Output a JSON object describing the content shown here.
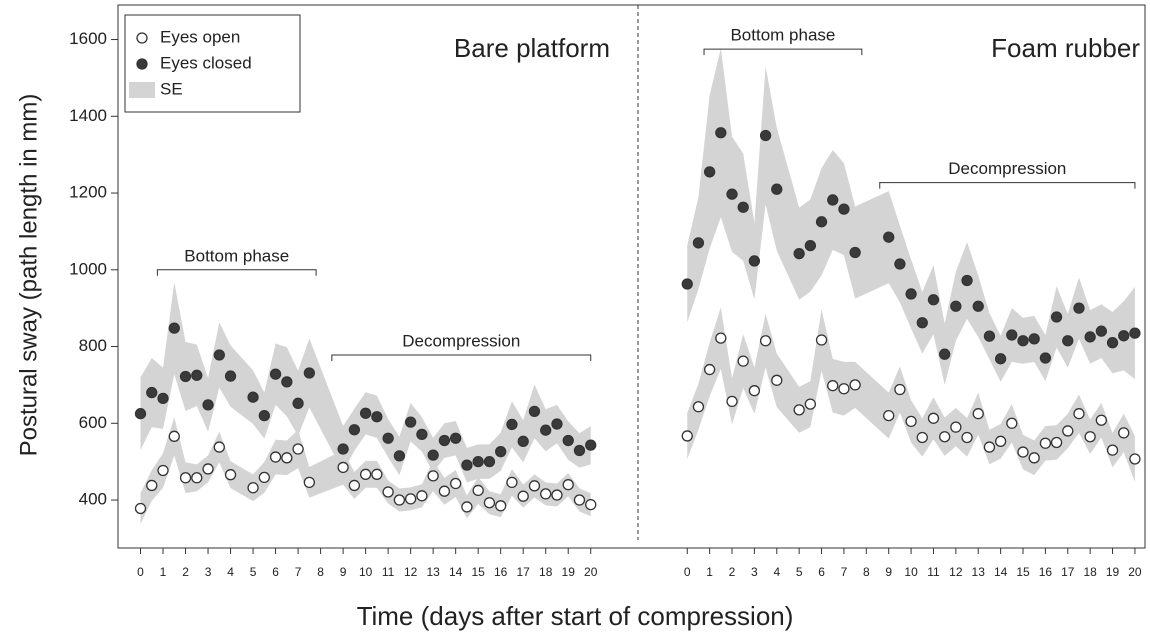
{
  "chart_data": [
    {
      "type": "scatter",
      "title": "Bare platform",
      "ylabel": "Postural sway (path length in mm)",
      "xlabel": "Time (days after start of compression)",
      "band_label": "SE",
      "band_color": "#d4d4d4",
      "legend": true,
      "xlim": [
        -1,
        22.1
      ],
      "ylim": [
        275,
        1690
      ],
      "xticks": [
        0,
        1,
        2,
        3,
        4,
        5,
        6,
        7,
        8,
        9,
        10,
        11,
        12,
        13,
        14,
        15,
        16,
        17,
        18,
        19,
        20
      ],
      "yticks": [
        400,
        600,
        800,
        1000,
        1200,
        1400,
        1600
      ],
      "x": [
        0,
        0.5,
        1,
        1.5,
        2,
        2.5,
        3,
        3.5,
        4,
        5,
        5.5,
        6,
        6.5,
        7,
        7.5,
        9,
        9.5,
        10,
        10.5,
        11,
        11.5,
        12,
        12.5,
        13,
        13.5,
        14,
        14.5,
        15,
        15.5,
        16,
        16.5,
        17,
        17.5,
        18,
        18.5,
        19,
        19.5,
        20
      ],
      "series": [
        {
          "name": "Eyes open",
          "color": "#ffffff",
          "values": [
            378,
            438,
            477,
            566,
            458,
            458,
            481,
            538,
            466,
            432,
            459,
            512,
            510,
            533,
            446,
            485,
            438,
            467,
            467,
            421,
            400,
            403,
            411,
            463,
            423,
            443,
            382,
            425,
            393,
            385,
            446,
            410,
            437,
            416,
            413,
            440,
            400,
            388
          ],
          "se": [
            40,
            40,
            45,
            50,
            40,
            35,
            35,
            40,
            35,
            35,
            40,
            45,
            45,
            50,
            40,
            45,
            35,
            35,
            35,
            30,
            30,
            30,
            30,
            40,
            35,
            35,
            30,
            35,
            30,
            30,
            35,
            30,
            30,
            30,
            30,
            30,
            30,
            30
          ]
        },
        {
          "name": "Eyes closed",
          "color": "#3a3a3a",
          "values": [
            625,
            680,
            665,
            848,
            722,
            725,
            648,
            778,
            723,
            668,
            620,
            728,
            708,
            652,
            731,
            533,
            583,
            626,
            617,
            561,
            515,
            603,
            571,
            517,
            555,
            561,
            491,
            500,
            500,
            526,
            597,
            553,
            631,
            582,
            598,
            555,
            529,
            543
          ],
          "se": [
            95,
            90,
            80,
            120,
            90,
            80,
            70,
            85,
            80,
            70,
            60,
            80,
            90,
            85,
            90,
            60,
            55,
            55,
            55,
            50,
            50,
            50,
            45,
            45,
            45,
            45,
            45,
            45,
            45,
            50,
            60,
            55,
            70,
            55,
            50,
            50,
            45,
            50
          ]
        }
      ],
      "annotations": [
        {
          "text": "Bottom phase",
          "span": [
            0.75,
            7.8
          ],
          "level": 1000
        },
        {
          "text": "Decompression",
          "span": [
            8.5,
            20
          ],
          "level": 778
        }
      ]
    },
    {
      "type": "scatter",
      "title": "Foam rubber",
      "xlim": [
        -2.2,
        20.45
      ],
      "ylim": [
        275,
        1690
      ],
      "xticks": [
        0,
        1,
        2,
        3,
        4,
        5,
        6,
        7,
        8,
        9,
        10,
        11,
        12,
        13,
        14,
        15,
        16,
        17,
        18,
        19,
        20
      ],
      "x": [
        0,
        0.5,
        1,
        1.5,
        2,
        2.5,
        3,
        3.5,
        4,
        5,
        5.5,
        6,
        6.5,
        7,
        7.5,
        9,
        9.5,
        10,
        10.5,
        11,
        11.5,
        12,
        12.5,
        13,
        13.5,
        14,
        14.5,
        15,
        15.5,
        16,
        16.5,
        17,
        17.5,
        18,
        18.5,
        19,
        19.5,
        20
      ],
      "series": [
        {
          "color": "#ffffff",
          "values": [
            567,
            643,
            740,
            822,
            657,
            762,
            685,
            815,
            712,
            635,
            650,
            817,
            698,
            690,
            700,
            620,
            688,
            605,
            563,
            613,
            565,
            590,
            563,
            625,
            538,
            553,
            600,
            525,
            510,
            548,
            550,
            580,
            625,
            565,
            608,
            530,
            575,
            507
          ],
          "se": [
            60,
            60,
            70,
            80,
            60,
            70,
            60,
            70,
            70,
            60,
            60,
            80,
            70,
            70,
            60,
            60,
            60,
            55,
            50,
            55,
            50,
            50,
            50,
            55,
            45,
            45,
            50,
            45,
            45,
            45,
            45,
            45,
            50,
            45,
            45,
            45,
            50,
            60
          ]
        },
        {
          "color": "#3a3a3a",
          "values": [
            963,
            1070,
            1255,
            1357,
            1197,
            1163,
            1023,
            1350,
            1210,
            1042,
            1063,
            1125,
            1182,
            1158,
            1045,
            1085,
            1015,
            937,
            862,
            922,
            780,
            905,
            972,
            905,
            827,
            768,
            830,
            815,
            820,
            770,
            877,
            815,
            900,
            825,
            840,
            810,
            828,
            835
          ],
          "se": [
            100,
            120,
            200,
            220,
            150,
            140,
            100,
            180,
            160,
            120,
            120,
            140,
            130,
            120,
            120,
            120,
            100,
            90,
            80,
            90,
            80,
            90,
            100,
            80,
            60,
            60,
            70,
            60,
            60,
            60,
            80,
            70,
            80,
            70,
            70,
            80,
            90,
            120
          ]
        }
      ],
      "annotations": [
        {
          "text": "Bottom phase",
          "span": [
            0.75,
            7.8
          ],
          "level": 1575
        },
        {
          "text": "Decompression",
          "span": [
            8.6,
            20
          ],
          "level": 1227
        }
      ]
    }
  ]
}
